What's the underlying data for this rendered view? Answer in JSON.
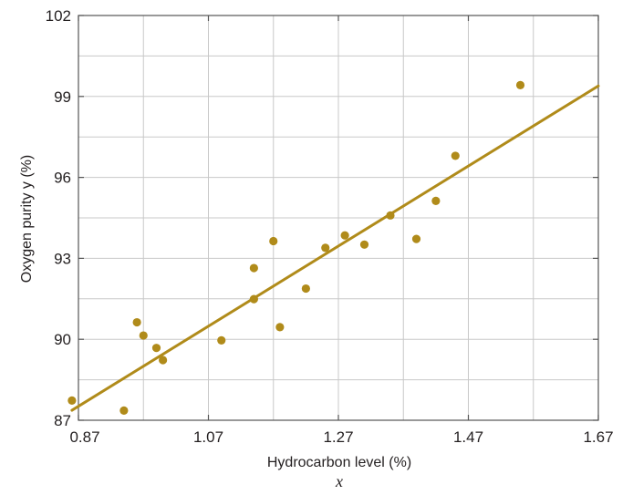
{
  "chart_data": {
    "type": "scatter",
    "title": "",
    "xlabel": "Hydrocarbon level (%)",
    "xlabel_var": "x",
    "ylabel": "Oxygen purity y (%)",
    "xlim": [
      0.87,
      1.67
    ],
    "ylim": [
      87,
      102
    ],
    "x_ticks": [
      0.87,
      1.07,
      1.27,
      1.47,
      1.67
    ],
    "y_ticks": [
      87,
      90,
      93,
      96,
      99,
      102
    ],
    "x_tick_labels": [
      "0.87",
      "1.07",
      "1.27",
      "1.47",
      "1.67"
    ],
    "y_tick_labels": [
      "87",
      "90",
      "93",
      "96",
      "99",
      "102"
    ],
    "grid": true,
    "colors": {
      "points": "#b08b1a",
      "fit_line": "#b08b1a",
      "grid": "#c8c8c8",
      "axis": "#555555",
      "text": "#231f20"
    },
    "series": [
      {
        "type": "scatter",
        "x": [
          0.86,
          0.94,
          0.96,
          0.97,
          0.99,
          1.0,
          1.09,
          1.14,
          1.14,
          1.17,
          1.18,
          1.22,
          1.25,
          1.28,
          1.31,
          1.35,
          1.39,
          1.42,
          1.45,
          1.55
        ],
        "y": [
          87.73,
          87.36,
          90.63,
          90.14,
          89.68,
          89.23,
          89.96,
          91.49,
          92.64,
          93.64,
          90.45,
          91.88,
          93.39,
          93.85,
          93.51,
          94.59,
          93.72,
          95.13,
          96.8,
          99.42
        ]
      },
      {
        "type": "line",
        "x": [
          0.86,
          1.67
        ],
        "y": [
          87.37,
          99.39
        ]
      }
    ]
  }
}
